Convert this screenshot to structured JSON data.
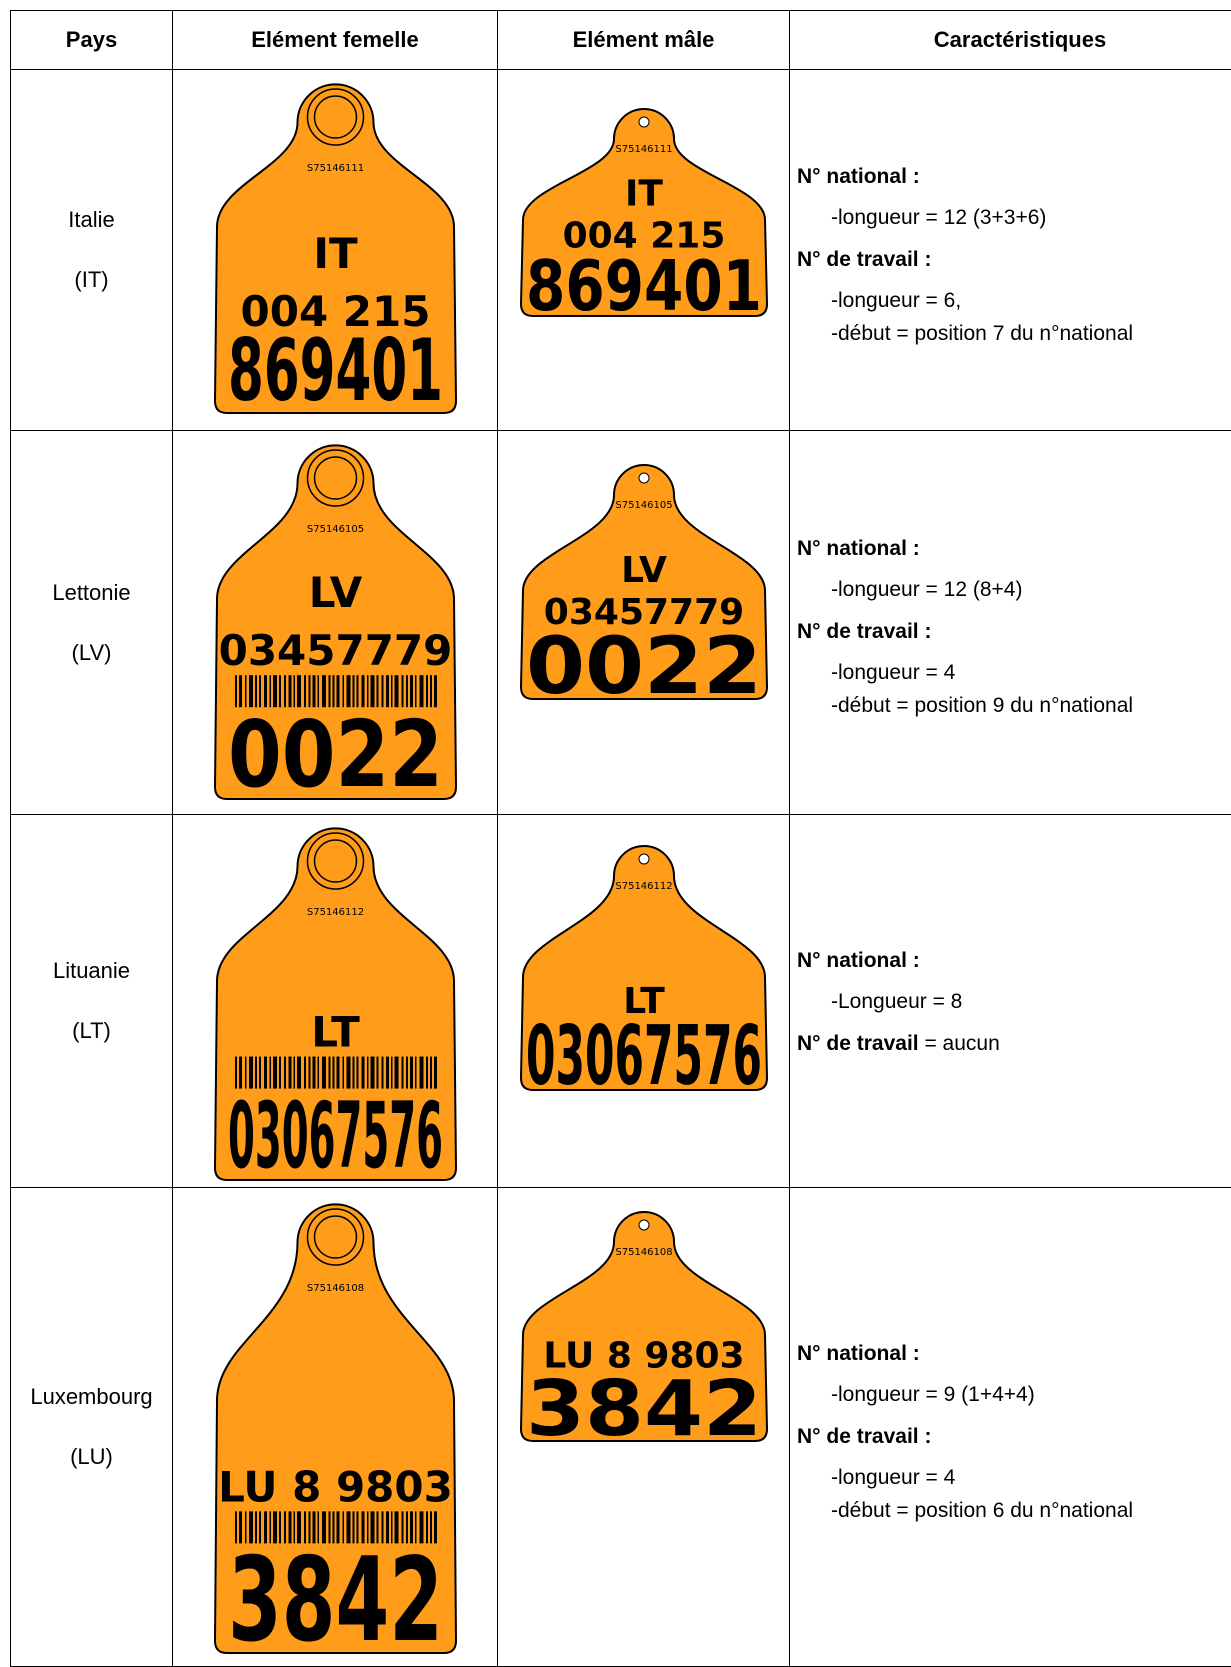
{
  "table": {
    "headers": [
      "Pays",
      "Elément femelle",
      "Elément mâle",
      "Caractéristiques"
    ],
    "rows": [
      {
        "country": "Italie",
        "code": "(IT)",
        "female": {
          "serial": "S75146111",
          "lines": [
            "IT",
            "004  215",
            "869401"
          ],
          "barcode": false
        },
        "male": {
          "serial": "S75146111",
          "lines": [
            "IT",
            "004  215",
            "869401"
          ]
        },
        "characteristics": [
          {
            "heading": "N° national :",
            "items": [
              "-longueur = 12 (3+3+6)"
            ]
          },
          {
            "heading": "N° de travail :",
            "items": [
              "-longueur = 6,",
              "-début = position 7 du n°national"
            ]
          }
        ]
      },
      {
        "country": "Lettonie",
        "code": "(LV)",
        "female": {
          "serial": "S75146105",
          "lines": [
            "LV",
            "03457779",
            "0022"
          ],
          "barcode": true
        },
        "male": {
          "serial": "S75146105",
          "lines": [
            "LV",
            "03457779",
            "0022"
          ]
        },
        "characteristics": [
          {
            "heading": "N° national :",
            "items": [
              "-longueur = 12 (8+4)"
            ]
          },
          {
            "heading": "N° de travail :",
            "items": [
              "-longueur = 4",
              "-début = position 9 du n°national"
            ]
          }
        ]
      },
      {
        "country": "Lituanie",
        "code": "(LT)",
        "female": {
          "serial": "S75146112",
          "lines": [
            "LT",
            "03067576"
          ],
          "barcode": true
        },
        "male": {
          "serial": "S75146112",
          "lines": [
            "LT",
            "03067576"
          ]
        },
        "characteristics": [
          {
            "heading": "N° national :",
            "items": [
              "-Longueur = 8"
            ]
          },
          {
            "heading": "N° de travail",
            "suffix": " = aucun",
            "items": []
          }
        ]
      },
      {
        "country": "Luxembourg",
        "code": "(LU)",
        "female": {
          "serial": "S75146108",
          "lines": [
            "LU  8  9803",
            "3842"
          ],
          "barcode": true
        },
        "male": {
          "serial": "S75146108",
          "lines": [
            "LU 8 9803",
            "3842"
          ]
        },
        "characteristics": [
          {
            "heading": "N° national :",
            "items": [
              "-longueur = 9 (1+4+4)"
            ]
          },
          {
            "heading": "N° de travail :",
            "items": [
              "-longueur = 4",
              "-début = position 6 du n°national"
            ]
          }
        ]
      }
    ]
  }
}
